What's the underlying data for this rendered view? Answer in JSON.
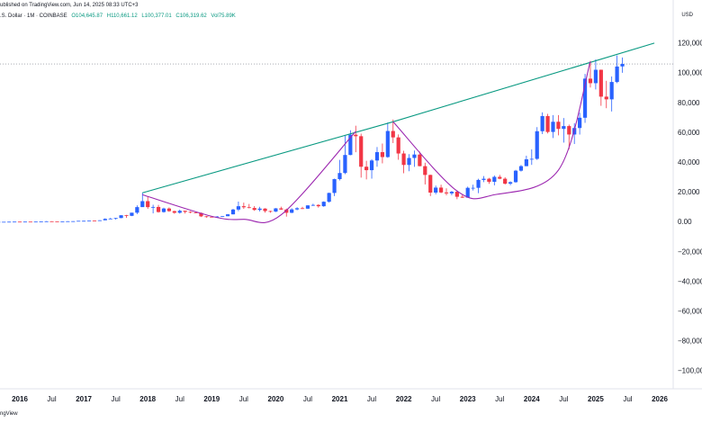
{
  "header": {
    "published": "ublished on TradingView.com, Jun 14, 2025 08:33 UTC+3",
    "symbol": ".S. Dollar · 1M · COINBASE",
    "o": "O104,645.87",
    "h": "H110,661.12",
    "l": "L100,377.01",
    "c": "C106,319.62",
    "vol": "Vol75.89K"
  },
  "currency": "USD",
  "footer": "ngView",
  "colors": {
    "up": "#2962ff",
    "down": "#f23645",
    "trendline": "#089981",
    "cup": "#9c27b0",
    "priceline": "#787b86"
  },
  "chart_data": {
    "type": "candlestick",
    "title": "",
    "xlabel": "",
    "ylabel": "",
    "ylim": [
      -110000,
      130000
    ],
    "yticks": [
      120000,
      100000,
      80000,
      60000,
      40000,
      20000,
      0,
      -20000,
      -40000,
      -60000,
      -80000,
      -100000
    ],
    "ytick_labels": [
      "120,000",
      "100,000",
      "80,000",
      "60,000",
      "40,000",
      "20,000",
      "0.00",
      "−20,000",
      "−40,000",
      "−60,000",
      "−80,000",
      "−100,000"
    ],
    "xticks": [
      "2016",
      "Jul",
      "2017",
      "Jul",
      "2018",
      "Jul",
      "2019",
      "Jul",
      "2020",
      "Jul",
      "2021",
      "Jul",
      "2022",
      "Jul",
      "2023",
      "Jul",
      "2024",
      "Jul",
      "2025",
      "Jul",
      "2026"
    ],
    "xtick_dates": [
      "2016-01",
      "2016-07",
      "2017-01",
      "2017-07",
      "2018-01",
      "2018-07",
      "2019-01",
      "2019-07",
      "2020-01",
      "2020-07",
      "2021-01",
      "2021-07",
      "2022-01",
      "2022-07",
      "2023-01",
      "2023-07",
      "2024-01",
      "2024-07",
      "2025-01",
      "2025-07",
      "2026-01"
    ],
    "last_price": 106319.62,
    "candles": [
      [
        "2015-01",
        320,
        320,
        315,
        318
      ],
      [
        "2015-02",
        318,
        320,
        316,
        319
      ],
      [
        "2015-03",
        319,
        321,
        317,
        320
      ],
      [
        "2015-04",
        320,
        322,
        318,
        321
      ],
      [
        "2015-05",
        321,
        323,
        319,
        322
      ],
      [
        "2015-06",
        322,
        324,
        320,
        323
      ],
      [
        "2015-07",
        323,
        325,
        321,
        324
      ],
      [
        "2015-08",
        324,
        325,
        322,
        323
      ],
      [
        "2015-09",
        323,
        325,
        321,
        324
      ],
      [
        "2015-10",
        324,
        330,
        322,
        328
      ],
      [
        "2015-11",
        328,
        420,
        320,
        380
      ],
      [
        "2015-12",
        380,
        460,
        340,
        430
      ],
      [
        "2016-01",
        430,
        460,
        360,
        370
      ],
      [
        "2016-02",
        370,
        440,
        360,
        435
      ],
      [
        "2016-03",
        435,
        440,
        400,
        415
      ],
      [
        "2016-04",
        415,
        470,
        410,
        450
      ],
      [
        "2016-05",
        450,
        550,
        440,
        530
      ],
      [
        "2016-06",
        530,
        780,
        520,
        670
      ],
      [
        "2016-07",
        670,
        700,
        600,
        625
      ],
      [
        "2016-08",
        625,
        630,
        540,
        575
      ],
      [
        "2016-09",
        575,
        620,
        570,
        610
      ],
      [
        "2016-10",
        610,
        720,
        600,
        700
      ],
      [
        "2016-11",
        700,
        760,
        680,
        745
      ],
      [
        "2016-12",
        745,
        980,
        740,
        965
      ],
      [
        "2017-01",
        965,
        1150,
        750,
        970
      ],
      [
        "2017-02",
        970,
        1200,
        920,
        1190
      ],
      [
        "2017-03",
        1190,
        1300,
        900,
        1080
      ],
      [
        "2017-04",
        1080,
        1360,
        1060,
        1350
      ],
      [
        "2017-05",
        1350,
        2700,
        1330,
        2300
      ],
      [
        "2017-06",
        2300,
        3000,
        2100,
        2480
      ],
      [
        "2017-07",
        2480,
        2900,
        1800,
        2870
      ],
      [
        "2017-08",
        2870,
        4750,
        2700,
        4730
      ],
      [
        "2017-09",
        4730,
        4980,
        2950,
        4340
      ],
      [
        "2017-10",
        4340,
        6450,
        4150,
        6450
      ],
      [
        "2017-11",
        6450,
        11400,
        5500,
        10200
      ],
      [
        "2017-12",
        10200,
        19800,
        10800,
        14200
      ],
      [
        "2018-01",
        14200,
        17300,
        9000,
        10200
      ],
      [
        "2018-02",
        10200,
        11800,
        6000,
        10300
      ],
      [
        "2018-03",
        10300,
        11700,
        6500,
        6900
      ],
      [
        "2018-04",
        6900,
        9800,
        6500,
        9250
      ],
      [
        "2018-05",
        9250,
        10000,
        7000,
        7500
      ],
      [
        "2018-06",
        7500,
        7800,
        5750,
        6400
      ],
      [
        "2018-07",
        6400,
        8500,
        5850,
        7730
      ],
      [
        "2018-08",
        7730,
        7760,
        5880,
        7000
      ],
      [
        "2018-09",
        7000,
        7400,
        6100,
        6630
      ],
      [
        "2018-10",
        6630,
        7000,
        6200,
        6300
      ],
      [
        "2018-11",
        6300,
        6600,
        3550,
        4000
      ],
      [
        "2018-12",
        4000,
        4200,
        3100,
        3700
      ],
      [
        "2019-01",
        3700,
        4100,
        3350,
        3450
      ],
      [
        "2019-02",
        3450,
        4200,
        3350,
        3850
      ],
      [
        "2019-03",
        3850,
        4150,
        3800,
        4100
      ],
      [
        "2019-04",
        4100,
        5600,
        4080,
        5350
      ],
      [
        "2019-05",
        5350,
        9100,
        5300,
        8550
      ],
      [
        "2019-06",
        8550,
        13900,
        7500,
        10800
      ],
      [
        "2019-07",
        10800,
        13200,
        9000,
        10100
      ],
      [
        "2019-08",
        10100,
        12300,
        9400,
        9600
      ],
      [
        "2019-09",
        9600,
        10900,
        7700,
        8300
      ],
      [
        "2019-10",
        8300,
        10400,
        7300,
        9200
      ],
      [
        "2019-11",
        9200,
        9500,
        6500,
        7550
      ],
      [
        "2019-12",
        7550,
        7750,
        6450,
        7200
      ],
      [
        "2020-01",
        7200,
        9600,
        6850,
        9350
      ],
      [
        "2020-02",
        9350,
        10500,
        8400,
        8550
      ],
      [
        "2020-03",
        8550,
        9200,
        3800,
        6400
      ],
      [
        "2020-04",
        6400,
        9450,
        6150,
        8650
      ],
      [
        "2020-05",
        8650,
        10100,
        8100,
        9450
      ],
      [
        "2020-06",
        9450,
        10400,
        8900,
        9150
      ],
      [
        "2020-07",
        9150,
        11450,
        8950,
        11350
      ],
      [
        "2020-08",
        11350,
        12450,
        10950,
        11650
      ],
      [
        "2020-09",
        11650,
        12100,
        9850,
        10800
      ],
      [
        "2020-10",
        10800,
        14050,
        10400,
        13800
      ],
      [
        "2020-11",
        13800,
        19900,
        13200,
        19700
      ],
      [
        "2020-12",
        19700,
        29300,
        17600,
        28990
      ],
      [
        "2021-01",
        28990,
        41950,
        28100,
        33100
      ],
      [
        "2021-02",
        33100,
        58350,
        32300,
        45200
      ],
      [
        "2021-03",
        45200,
        61800,
        45000,
        58800
      ],
      [
        "2021-04",
        58800,
        64850,
        47050,
        57800
      ],
      [
        "2021-05",
        57800,
        59500,
        30000,
        37300
      ],
      [
        "2021-06",
        37300,
        41300,
        28800,
        35000
      ],
      [
        "2021-07",
        35000,
        42400,
        29300,
        41500
      ],
      [
        "2021-08",
        41500,
        50500,
        37300,
        47100
      ],
      [
        "2021-09",
        47100,
        52900,
        39600,
        43800
      ],
      [
        "2021-10",
        43800,
        67000,
        43300,
        61300
      ],
      [
        "2021-11",
        61300,
        69000,
        53200,
        57000
      ],
      [
        "2021-12",
        57000,
        59000,
        42000,
        46200
      ],
      [
        "2022-01",
        46200,
        48000,
        32900,
        38500
      ],
      [
        "2022-02",
        38500,
        45800,
        34300,
        43200
      ],
      [
        "2022-03",
        43200,
        48200,
        37200,
        45500
      ],
      [
        "2022-04",
        45500,
        47450,
        37600,
        37700
      ],
      [
        "2022-05",
        37700,
        40000,
        25400,
        31800
      ],
      [
        "2022-06",
        31800,
        31950,
        17600,
        19950
      ],
      [
        "2022-07",
        19950,
        24650,
        18800,
        23300
      ],
      [
        "2022-08",
        23300,
        25200,
        19550,
        20050
      ],
      [
        "2022-09",
        20050,
        22800,
        18150,
        19420
      ],
      [
        "2022-10",
        19420,
        21100,
        18200,
        20500
      ],
      [
        "2022-11",
        20500,
        21450,
        15500,
        17150
      ],
      [
        "2022-12",
        17150,
        18400,
        16350,
        16550
      ],
      [
        "2023-01",
        16550,
        23950,
        16500,
        23150
      ],
      [
        "2023-02",
        23150,
        25250,
        21350,
        23150
      ],
      [
        "2023-03",
        23150,
        29200,
        19550,
        28450
      ],
      [
        "2023-04",
        28450,
        31050,
        26950,
        29250
      ],
      [
        "2023-05",
        29250,
        29800,
        25850,
        27200
      ],
      [
        "2023-06",
        27200,
        31450,
        24800,
        30500
      ],
      [
        "2023-07",
        30500,
        31850,
        28900,
        29250
      ],
      [
        "2023-08",
        29250,
        30250,
        25350,
        25950
      ],
      [
        "2023-09",
        25950,
        27500,
        24900,
        26950
      ],
      [
        "2023-10",
        26950,
        35200,
        26550,
        34650
      ],
      [
        "2023-11",
        34650,
        38450,
        34100,
        37700
      ],
      [
        "2023-12",
        37700,
        44700,
        37650,
        42300
      ],
      [
        "2024-01",
        42300,
        48950,
        38550,
        42600
      ],
      [
        "2024-02",
        42600,
        63900,
        41900,
        61150
      ],
      [
        "2024-03",
        61150,
        73800,
        59250,
        71300
      ],
      [
        "2024-04",
        71300,
        72800,
        59700,
        60650
      ],
      [
        "2024-05",
        60650,
        71950,
        56550,
        67500
      ],
      [
        "2024-06",
        67500,
        71950,
        58400,
        62700
      ],
      [
        "2024-07",
        62700,
        70000,
        53500,
        64600
      ],
      [
        "2024-08",
        64600,
        65600,
        49000,
        58950
      ],
      [
        "2024-09",
        58950,
        66500,
        52550,
        63300
      ],
      [
        "2024-10",
        63300,
        73600,
        58900,
        70200
      ],
      [
        "2024-11",
        70200,
        99600,
        66800,
        96450
      ],
      [
        "2024-12",
        96450,
        108350,
        90500,
        93400
      ],
      [
        "2025-01",
        93400,
        109350,
        89200,
        102400
      ],
      [
        "2025-02",
        102400,
        102500,
        78200,
        84350
      ],
      [
        "2025-03",
        84350,
        95000,
        76600,
        82550
      ],
      [
        "2025-04",
        82550,
        97900,
        74400,
        94200
      ],
      [
        "2025-05",
        94200,
        111980,
        93400,
        104600
      ],
      [
        "2025-06",
        104645.87,
        110661.12,
        100377.01,
        106319.62
      ]
    ],
    "annotations": [
      {
        "type": "trendline",
        "points": [
          [
            "2017-12",
            19800
          ],
          [
            "2021-11",
            67500
          ],
          [
            "2025-12",
            120300
          ]
        ]
      },
      {
        "type": "cup",
        "points": [
          [
            "2017-12",
            18500
          ],
          [
            "2019-01",
            4000
          ],
          [
            "2019-07",
            2000
          ],
          [
            "2020-02",
            5000
          ],
          [
            "2021-04",
            61000
          ]
        ]
      },
      {
        "type": "cup",
        "points": [
          [
            "2021-11",
            67500
          ],
          [
            "2022-11",
            21000
          ],
          [
            "2023-06",
            18500
          ],
          [
            "2024-06",
            35000
          ],
          [
            "2024-12",
            108000
          ]
        ]
      }
    ]
  }
}
